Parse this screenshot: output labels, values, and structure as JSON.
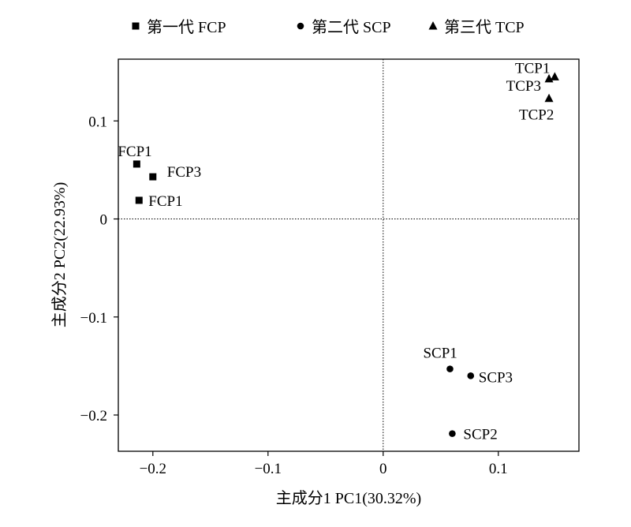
{
  "chart_data": {
    "type": "scatter",
    "xlabel": "主成分1 PC1(30.32%)",
    "ylabel": "主成分2 PC2(22.93%)",
    "xlim": [
      -0.23,
      0.17
    ],
    "ylim": [
      -0.237,
      0.163
    ],
    "xticks": [
      -0.2,
      -0.1,
      0,
      0.1
    ],
    "xtick_labels": [
      "−0.2",
      "−0.1",
      "0",
      "0.1"
    ],
    "yticks": [
      -0.2,
      -0.1,
      0,
      0.1
    ],
    "ytick_labels": [
      "−0.2",
      "−0.1",
      "0",
      "0.1"
    ],
    "grid": false,
    "zero_lines": true,
    "legend_position": "top",
    "series": [
      {
        "name": "第一代 FCP",
        "marker": "square",
        "points": [
          {
            "x": -0.214,
            "y": 0.056,
            "label": "FCP1"
          },
          {
            "x": -0.2,
            "y": 0.043,
            "label": "FCP3"
          },
          {
            "x": -0.212,
            "y": 0.019,
            "label": "FCP1"
          }
        ]
      },
      {
        "name": "第二代 SCP",
        "marker": "circle",
        "points": [
          {
            "x": 0.058,
            "y": -0.153,
            "label": "SCP1"
          },
          {
            "x": 0.076,
            "y": -0.16,
            "label": "SCP3"
          },
          {
            "x": 0.06,
            "y": -0.219,
            "label": "SCP2"
          }
        ]
      },
      {
        "name": "第三代 TCP",
        "marker": "triangle",
        "points": [
          {
            "x": 0.149,
            "y": 0.145,
            "label": "TCP1"
          },
          {
            "x": 0.144,
            "y": 0.143,
            "label": "TCP3"
          },
          {
            "x": 0.144,
            "y": 0.123,
            "label": "TCP2"
          }
        ]
      }
    ]
  }
}
